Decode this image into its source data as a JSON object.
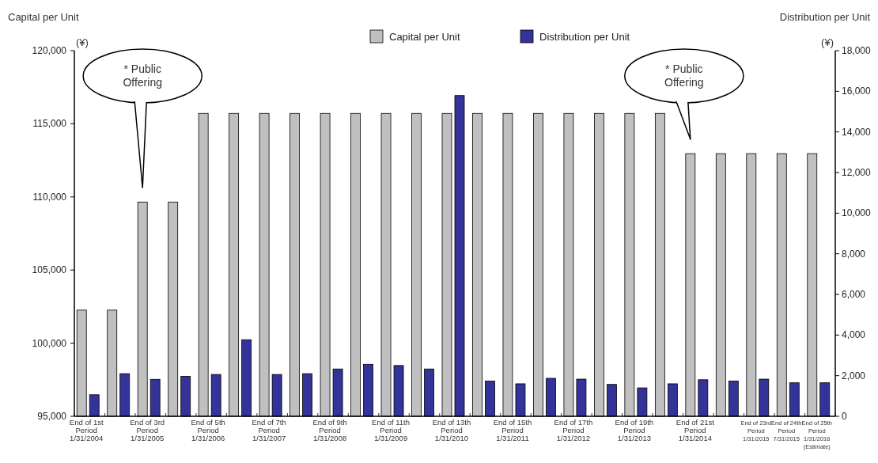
{
  "chart_data": {
    "type": "bar",
    "ylabel": "Capital per Unit\n(¥)",
    "y2label": "Distribution per Unit\n(¥)",
    "categories": [
      "End of 1st\nPeriod\n1/31/2004",
      null,
      "End of 3rd\nPeriod\n1/31/2005",
      null,
      "End of 5th\nPeriod\n1/31/2006",
      null,
      "End of 7th\nPeriod\n1/31/2007",
      null,
      "End of 9th\nPeriod\n1/31/2008",
      null,
      "End of 11th\nPeriod\n1/31/2009",
      null,
      "End of 13th\nPeriod\n1/31/2010",
      null,
      "End of 15th\nPeriod\n1/31/2011",
      null,
      "End of 17th\nPeriod\n1/31/2012",
      null,
      "End of 19th\nPeriod\n1/31/2013",
      null,
      "End of 21st\nPeriod\n1/31/2014",
      null,
      "End of 23rd\nPeriod\n1/31/2015",
      "End of 24th\nPeriod\n7/31/2015",
      "End of 25th\nPeriod\n1/31/2016\n(Estimate)"
    ],
    "series": [
      {
        "name": "Capital per Unit",
        "color": "#c0c0c0",
        "values": [
          102260,
          102260,
          109650,
          109650,
          115710,
          115710,
          115710,
          115710,
          115710,
          115710,
          115710,
          115710,
          115710,
          115710,
          115710,
          115710,
          115710,
          115710,
          115710,
          115710,
          112960,
          112960,
          112960,
          112960,
          112960
        ]
      },
      {
        "name": "Distribution per Unit",
        "color": "#333399",
        "axis": "y2",
        "values": [
          1060,
          2100,
          1820,
          1970,
          2060,
          3770,
          2060,
          2100,
          2330,
          2560,
          2500,
          2330,
          15790,
          1740,
          1600,
          1870,
          1830,
          1570,
          1400,
          1600,
          1800,
          1740,
          1830,
          1650,
          1650
        ]
      }
    ],
    "ylim": [
      95000,
      120000
    ],
    "yticks": [
      {
        "value": 95000,
        "label": "95,000"
      },
      {
        "value": 100000,
        "label": "100,000"
      },
      {
        "value": 105000,
        "label": "105,000"
      },
      {
        "value": 110000,
        "label": "110,000"
      },
      {
        "value": 115000,
        "label": "115,000"
      },
      {
        "value": 120000,
        "label": "120,000"
      }
    ],
    "y2lim": [
      0,
      18000
    ],
    "y2ticks": [
      0,
      {
        "value": 2000,
        "label": "2,000"
      },
      {
        "value": 4000,
        "label": "4,000"
      },
      {
        "value": 6000,
        "label": "6,000"
      },
      {
        "value": 8000,
        "label": "8,000"
      },
      {
        "value": 10000,
        "label": "10,000"
      },
      {
        "value": 12000,
        "label": "12,000"
      },
      {
        "value": 14000,
        "label": "14,000"
      },
      {
        "value": 16000,
        "label": "16,000"
      },
      {
        "value": 18000,
        "label": "18,000"
      }
    ],
    "legend": "top",
    "annotations": [
      "* Public\nOffering",
      "* Public\nOffering"
    ]
  }
}
